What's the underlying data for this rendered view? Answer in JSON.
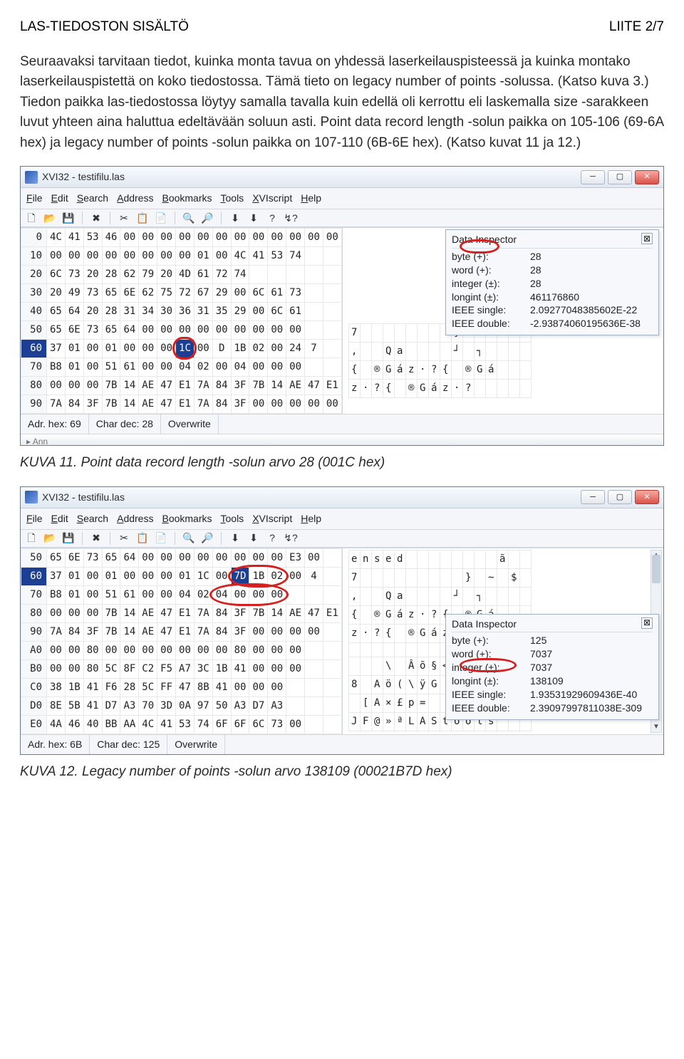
{
  "page": {
    "header_left": "LAS-TIEDOSTON SISÄLTÖ",
    "header_right": "LIITE 2/7"
  },
  "body_text": {
    "p1": "Seuraavaksi tarvitaan tiedot, kuinka monta tavua on yhdessä laserkeilauspisteessä ja kuinka montako laserkeilauspistettä on koko tiedostossa. Tämä tieto on legacy number of points -solussa. (Katso kuva 3.) Tiedon paikka las-tiedostossa löytyy samalla tavalla kuin edellä oli kerrottu eli laskemalla size -sarakkeen luvut yhteen aina haluttua edeltävään soluun asti. Point data record length -solun paikka on 105-106 (69-6A hex) ja legacy number of points -solun paikka on 107-110 (6B-6E hex). (Katso kuvat 11 ja 12.)"
  },
  "win1": {
    "title": "XVI32 - testifilu.las",
    "menus": [
      "File",
      "Edit",
      "Search",
      "Address",
      "Bookmarks",
      "Tools",
      "XVIscript",
      "Help"
    ],
    "toolbar_glyphs": [
      "🗋",
      "📂",
      "💾",
      "✖",
      "✂",
      "📋",
      "📄",
      "🔍",
      "🔎",
      "⬇",
      "⬇",
      "?",
      "↯?"
    ],
    "addr_hex_label": "Adr. hex:",
    "addr_hex_val": "69",
    "char_dec_label": "Char dec:",
    "char_dec_val": "28",
    "mode": "Overwrite",
    "rows": [
      {
        "a": "0",
        "c": [
          "4C",
          "41",
          "53",
          "46",
          "00",
          "00",
          "00",
          "00",
          "00",
          "00",
          "00",
          "00",
          "00",
          "00",
          "00",
          "00"
        ],
        "t": [
          ".",
          "A",
          "S",
          "F",
          "",
          "",
          "",
          "",
          "",
          "",
          "",
          "",
          "",
          "",
          "",
          ""
        ]
      },
      {
        "a": "10",
        "c": [
          "00",
          "00",
          "00",
          "00",
          "00",
          "00",
          "00",
          "00",
          "01",
          "00",
          "4C",
          "41",
          "53",
          "74",
          "",
          ""
        ],
        "t": [
          "",
          "",
          "",
          "",
          "",
          "",
          "",
          "",
          "",
          "",
          "L",
          "A",
          "S",
          "t",
          "",
          ""
        ]
      },
      {
        "a": "20",
        "c": [
          "6C",
          "73",
          "20",
          "28",
          "62",
          "79",
          "20",
          "4D",
          "61",
          "72",
          "74",
          "",
          "",
          "",
          "",
          ""
        ],
        "t": [
          "l",
          "s",
          " ",
          "(",
          "b",
          "y",
          " ",
          "M",
          "a",
          "r",
          "t",
          "",
          "",
          "",
          "",
          ""
        ]
      },
      {
        "a": "30",
        "c": [
          "20",
          "49",
          "73",
          "65",
          "6E",
          "62",
          "75",
          "72",
          "67",
          "29",
          "00",
          "6C",
          "61",
          "73",
          "",
          ""
        ],
        "t": [
          " ",
          "I",
          "s",
          "e",
          "n",
          "b",
          "u",
          "r",
          "g",
          ")",
          "",
          "l",
          "a",
          "s",
          "",
          ""
        ]
      },
      {
        "a": "40",
        "c": [
          "65",
          "64",
          "20",
          "28",
          "31",
          "34",
          "30",
          "36",
          "31",
          "35",
          "29",
          "00",
          "6C",
          "61",
          "",
          ""
        ],
        "t": [
          "e",
          "d",
          " ",
          "(",
          "1",
          "4",
          "0",
          "6",
          "1",
          "5",
          ")",
          "",
          "l",
          "a",
          "",
          ""
        ]
      },
      {
        "a": "50",
        "c": [
          "65",
          "6E",
          "73",
          "65",
          "64",
          "00",
          "00",
          "00",
          "00",
          "00",
          "00",
          "00",
          "00",
          "00",
          "",
          ""
        ],
        "t": [
          "e",
          "n",
          "s",
          "e",
          "d",
          "",
          "",
          "",
          "",
          "",
          "",
          "",
          "",
          "",
          "",
          ""
        ]
      },
      {
        "a": "60",
        "c": [
          "37",
          "01",
          "00",
          "01",
          "00",
          "00",
          "00",
          "1C",
          "00",
          "D",
          "1B",
          "02",
          "00",
          "24",
          "7",
          ""
        ],
        "hl": true,
        "sel": 7,
        "t": [
          "7",
          "",
          "",
          "",
          "",
          "",
          "",
          "",
          "",
          "}",
          "",
          "~",
          "",
          "",
          "",
          ""
        ]
      },
      {
        "a": "70",
        "c": [
          "B8",
          "01",
          "00",
          "51",
          "61",
          "00",
          "00",
          "04",
          "02",
          "00",
          "04",
          "00",
          "00",
          "00",
          "",
          ""
        ],
        "t": [
          ",",
          "",
          "",
          "Q",
          "a",
          "",
          "",
          "",
          "",
          "┘",
          "",
          "┐",
          "",
          "",
          "",
          ""
        ]
      },
      {
        "a": "80",
        "c": [
          "00",
          "00",
          "00",
          "7B",
          "14",
          "AE",
          "47",
          "E1",
          "7A",
          "84",
          "3F",
          "7B",
          "14",
          "AE",
          "47",
          "E1"
        ],
        "t": [
          "{",
          "",
          "®",
          "G",
          "á",
          "z",
          "·",
          "?",
          "{",
          "",
          "®",
          "G",
          "á",
          "",
          "",
          ""
        ]
      },
      {
        "a": "90",
        "c": [
          "7A",
          "84",
          "3F",
          "7B",
          "14",
          "AE",
          "47",
          "E1",
          "7A",
          "84",
          "3F",
          "00",
          "00",
          "00",
          "00",
          "00"
        ],
        "t": [
          "z",
          "·",
          "?",
          "{",
          "",
          "®",
          "G",
          "á",
          "z",
          "·",
          "?",
          "",
          "",
          "",
          "",
          ""
        ]
      }
    ],
    "inspector": {
      "title": "Data Inspector",
      "rows": [
        {
          "lbl": "byte (+):",
          "val": "28"
        },
        {
          "lbl": "word (+):",
          "val": "28"
        },
        {
          "lbl": "integer (±):",
          "val": "28"
        },
        {
          "lbl": "longint (±):",
          "val": "461176860"
        },
        {
          "lbl": "IEEE single:",
          "val": "2.09277048385602E-22"
        },
        {
          "lbl": "IEEE double:",
          "val": "-2.93874060195636E-38"
        }
      ],
      "red_ring_val": "28"
    },
    "partial_below_text": "▸ Ann"
  },
  "caption1": "KUVA 11. Point data record length -solun arvo 28 (001C hex)",
  "win2": {
    "title": "XVI32 - testifilu.las",
    "menus": [
      "File",
      "Edit",
      "Search",
      "Address",
      "Bookmarks",
      "Tools",
      "XVIscript",
      "Help"
    ],
    "toolbar_glyphs": [
      "🗋",
      "📂",
      "💾",
      "✖",
      "✂",
      "📋",
      "📄",
      "🔍",
      "🔎",
      "⬇",
      "⬇",
      "?",
      "↯?"
    ],
    "addr_hex_label": "Adr. hex:",
    "addr_hex_val": "6B",
    "char_dec_label": "Char dec:",
    "char_dec_val": "125",
    "mode": "Overwrite",
    "rows": [
      {
        "a": "50",
        "c": [
          "65",
          "6E",
          "73",
          "65",
          "64",
          "00",
          "00",
          "00",
          "00",
          "00",
          "00",
          "00",
          "00",
          "E3",
          "00",
          ""
        ],
        "t": [
          "e",
          "n",
          "s",
          "e",
          "d",
          "",
          "",
          "",
          "",
          "",
          "",
          "",
          "",
          "ã",
          "",
          ""
        ]
      },
      {
        "a": "60",
        "c": [
          "37",
          "01",
          "00",
          "01",
          "00",
          "00",
          "00",
          "01",
          "1C",
          "00",
          "7D",
          "1B",
          "02",
          "00",
          "4",
          ""
        ],
        "hl": true,
        "sel": 10,
        "t": [
          "7",
          "",
          "",
          "",
          "",
          "",
          "",
          "",
          "",
          "",
          "}",
          "",
          "~",
          "",
          "$",
          ""
        ]
      },
      {
        "a": "70",
        "c": [
          "B8",
          "01",
          "00",
          "51",
          "61",
          "00",
          "00",
          "04",
          "02",
          "04",
          "00",
          "00",
          "00",
          "",
          "",
          ""
        ],
        "t": [
          ",",
          "",
          "",
          "Q",
          "a",
          "",
          "",
          "",
          "",
          "┘",
          "",
          "┐",
          "",
          "",
          "",
          ""
        ]
      },
      {
        "a": "80",
        "c": [
          "00",
          "00",
          "00",
          "7B",
          "14",
          "AE",
          "47",
          "E1",
          "7A",
          "84",
          "3F",
          "7B",
          "14",
          "AE",
          "47",
          "E1"
        ],
        "t": [
          "{",
          "",
          "®",
          "G",
          "á",
          "z",
          "·",
          "?",
          "{",
          "",
          "®",
          "G",
          "á",
          "",
          "",
          ""
        ]
      },
      {
        "a": "90",
        "c": [
          "7A",
          "84",
          "3F",
          "7B",
          "14",
          "AE",
          "47",
          "E1",
          "7A",
          "84",
          "3F",
          "00",
          "00",
          "00",
          "00",
          ""
        ],
        "t": [
          "z",
          "·",
          "?",
          "{",
          "",
          "®",
          "G",
          "á",
          "z",
          "·",
          "?",
          "",
          "",
          "",
          "",
          ""
        ]
      },
      {
        "a": "A0",
        "c": [
          "00",
          "00",
          "80",
          "00",
          "00",
          "00",
          "00",
          "00",
          "00",
          "00",
          "80",
          "00",
          "00",
          "00",
          "",
          ""
        ],
        "t": [
          "",
          "",
          "",
          "",
          "",
          "",
          "",
          "",
          "",
          "",
          "",
          "",
          "",
          "",
          "",
          ""
        ]
      },
      {
        "a": "B0",
        "c": [
          "00",
          "00",
          "80",
          "5C",
          "8F",
          "C2",
          "F5",
          "A7",
          "3C",
          "1B",
          "41",
          "00",
          "00",
          "00",
          "",
          ""
        ],
        "t": [
          "",
          "",
          "",
          "\\",
          "",
          "Â",
          "õ",
          "§",
          "<",
          "",
          "A",
          "",
          "",
          "",
          "",
          ""
        ]
      },
      {
        "a": "C0",
        "c": [
          "38",
          "1B",
          "41",
          "F6",
          "28",
          "5C",
          "FF",
          "47",
          "8B",
          "41",
          "00",
          "00",
          "00",
          "",
          "",
          ""
        ],
        "t": [
          "8",
          "",
          "A",
          "ö",
          "(",
          "\\",
          "ÿ",
          "G",
          "",
          "A",
          "",
          "",
          "",
          "",
          "",
          ""
        ]
      },
      {
        "a": "D0",
        "c": [
          "8E",
          "5B",
          "41",
          "D7",
          "A3",
          "70",
          "3D",
          "0A",
          "97",
          "50",
          "A3",
          "D7",
          "A3",
          "",
          "",
          ""
        ],
        "t": [
          "",
          "[",
          "A",
          "×",
          "£",
          "p",
          "=",
          "",
          "",
          "P",
          "£",
          "×",
          "£",
          "",
          "",
          ""
        ]
      },
      {
        "a": "E0",
        "c": [
          "4A",
          "46",
          "40",
          "BB",
          "AA",
          "4C",
          "41",
          "53",
          "74",
          "6F",
          "6F",
          "6C",
          "73",
          "00",
          "",
          ""
        ],
        "t": [
          "J",
          "F",
          "@",
          "»",
          "ª",
          "L",
          "A",
          "S",
          "t",
          "o",
          "o",
          "l",
          "s",
          "",
          "",
          ""
        ]
      }
    ],
    "inspector": {
      "title": "Data Inspector",
      "rows": [
        {
          "lbl": "byte (+):",
          "val": "125"
        },
        {
          "lbl": "word (+):",
          "val": "7037"
        },
        {
          "lbl": "integer (±):",
          "val": "7037"
        },
        {
          "lbl": "longint (±):",
          "val": "138109"
        },
        {
          "lbl": "IEEE single:",
          "val": "1.93531929609436E-40"
        },
        {
          "lbl": "IEEE double:",
          "val": "2.39097997811038E-309"
        }
      ],
      "red_ring_val": "138109"
    }
  },
  "caption2": "KUVA 12. Legacy number of points -solun arvo 138109 (00021B7D hex)"
}
